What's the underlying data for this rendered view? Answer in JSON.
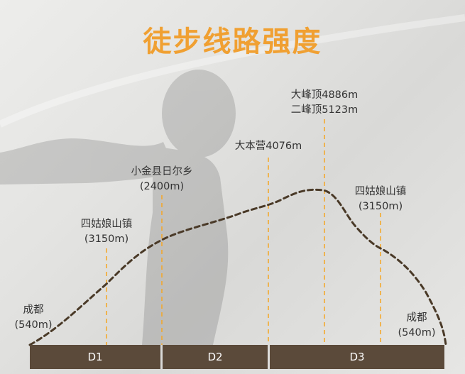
{
  "title": "徒步线路强度",
  "colors": {
    "accent": "#f0a032",
    "route": "#4a3a28",
    "day_bar": "#5b4a3a",
    "marker_line": "#f5a623"
  },
  "waypoints": [
    {
      "name": "成都",
      "altitude": "(540m)"
    },
    {
      "name": "四姑娘山镇",
      "altitude": "(3150m)"
    },
    {
      "name": "小金县日尔乡",
      "altitude": "(2400m)"
    },
    {
      "name": "大本营4076m"
    },
    {
      "name": "大峰顶4886m",
      "altitude": "二峰顶5123m"
    },
    {
      "name": "四姑娘山镇",
      "altitude": "(3150m)"
    },
    {
      "name": "成都",
      "altitude": "(540m)"
    }
  ],
  "days": [
    "D1",
    "D2",
    "D3"
  ]
}
